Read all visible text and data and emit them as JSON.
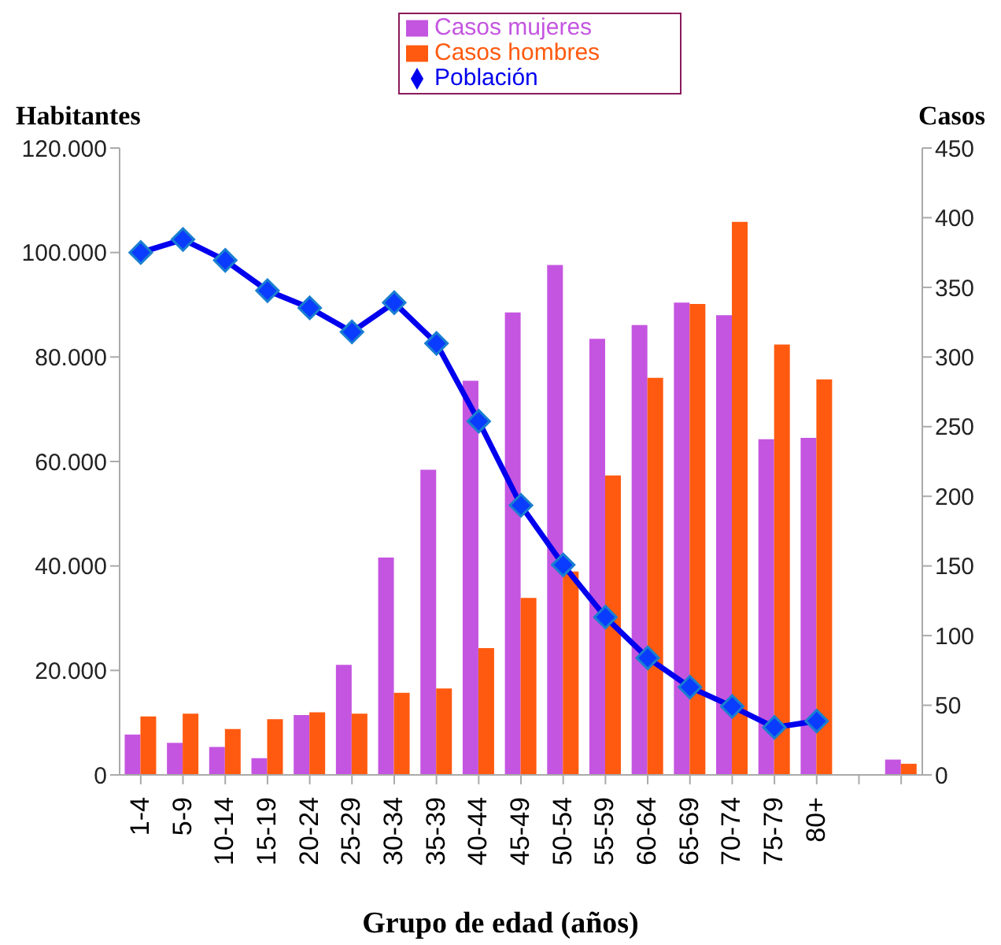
{
  "chart_data": {
    "type": "bar",
    "xlabel": "Grupo de edad (años)",
    "ylabel": "Habitantes",
    "y2label": "Casos",
    "categories": [
      "1-4",
      "5-9",
      "10-14",
      "15-19",
      "20-24",
      "25-29",
      "30-34",
      "35-39",
      "40-44",
      "45-49",
      "50-54",
      "55-59",
      "60-64",
      "65-69",
      "70-74",
      "75-79",
      "80+",
      null,
      null
    ],
    "series": [
      {
        "name": "Casos mujeres",
        "axis": "y2",
        "color": "#c455e0",
        "values": [
          29,
          23,
          20,
          12,
          43,
          79,
          156,
          219,
          283,
          332,
          366,
          313,
          323,
          339,
          330,
          241,
          242,
          null,
          11
        ]
      },
      {
        "name": "Casos hombres",
        "axis": "y2",
        "color": "#ff5a10",
        "values": [
          42,
          44,
          33,
          40,
          45,
          44,
          59,
          62,
          91,
          127,
          146,
          215,
          285,
          338,
          397,
          309,
          284,
          null,
          8
        ]
      },
      {
        "name": "Población",
        "type": "line",
        "axis": "y",
        "color": "#0000ee",
        "marker": "diamond",
        "values": [
          100000,
          102500,
          98500,
          92700,
          89400,
          84800,
          90400,
          82600,
          67700,
          51600,
          40200,
          30200,
          22400,
          16800,
          13100,
          9100,
          10300,
          null,
          null
        ]
      }
    ],
    "ylim": [
      0,
      120000
    ],
    "yticks": [
      {
        "value": 0,
        "label": "0"
      },
      {
        "value": 20000,
        "label": "20.000"
      },
      {
        "value": 40000,
        "label": "40.000"
      },
      {
        "value": 60000,
        "label": "60.000"
      },
      {
        "value": 80000,
        "label": "80.000"
      },
      {
        "value": 100000,
        "label": "100.000"
      },
      {
        "value": 120000,
        "label": "120.000"
      }
    ],
    "y2lim": [
      0,
      450
    ],
    "y2ticks": [
      0,
      50,
      100,
      150,
      200,
      250,
      300,
      350,
      400,
      450
    ],
    "legend": "top",
    "grid": false
  }
}
